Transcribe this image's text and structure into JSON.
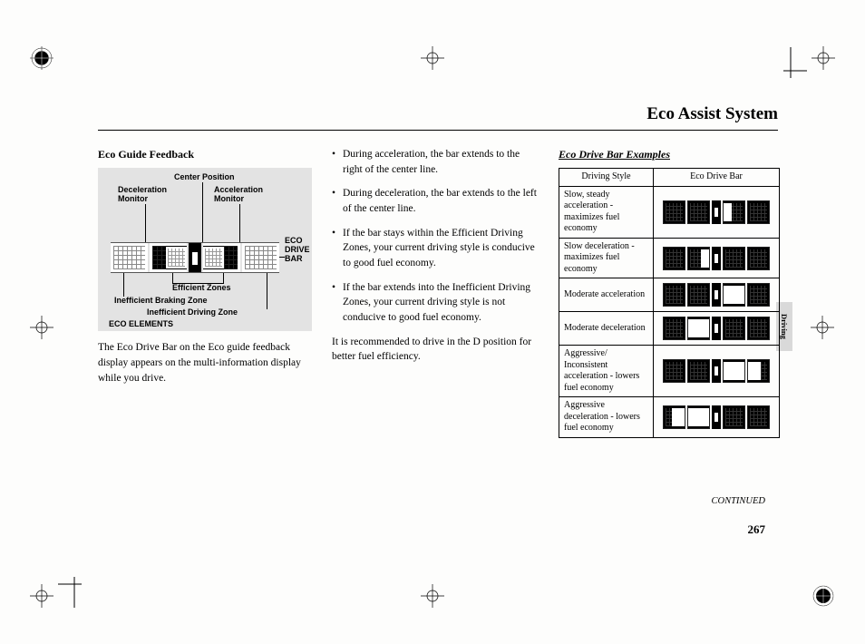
{
  "page": {
    "title": "Eco Assist System",
    "continued": "CONTINUED",
    "number": "267",
    "side_tab": "Driving"
  },
  "col1": {
    "heading": "Eco Guide Feedback",
    "body": "The Eco Drive Bar on the Eco guide feedback display appears on the multi-information display while you drive.",
    "diagram": {
      "center_position": "Center Position",
      "decel_monitor": "Deceleration\nMonitor",
      "accel_monitor": "Acceleration\nMonitor",
      "eco_drive_bar": "ECO\nDRIVE\nBAR",
      "efficient_zones": "Efficient Zones",
      "ineff_braking": "Inefficient Braking Zone",
      "ineff_driving": "Inefficient Driving Zone",
      "eco_elements": "ECO ELEMENTS"
    }
  },
  "col2": {
    "bullets": [
      "During acceleration, the bar extends to the right of the center line.",
      "During deceleration, the bar extends to the left of the center line.",
      "If the bar stays within the Efficient Driving Zones, your current driving style is conducive to good fuel economy.",
      "If the bar extends into the Inefficient Driving Zones, your current driving style is not conducive to good fuel economy."
    ],
    "tail": "It is recommended to drive in the D position for better fuel efficiency."
  },
  "col3": {
    "heading": "Eco Drive Bar Examples",
    "th1": "Driving Style",
    "th2": "Eco Drive Bar",
    "rows": [
      {
        "style": "Slow, steady acceleration - maximizes fuel economy",
        "bar": {
          "segs": [
            "dark",
            "dark",
            "center",
            "fill-right-40",
            "dark"
          ]
        }
      },
      {
        "style": "Slow deceleration - maximizes fuel economy",
        "bar": {
          "segs": [
            "dark",
            "fill-left-40",
            "center",
            "dark",
            "dark"
          ]
        }
      },
      {
        "style": "Moderate acceleration",
        "bar": {
          "segs": [
            "dark",
            "dark",
            "center",
            "fill-right-100",
            "dark"
          ]
        }
      },
      {
        "style": "Moderate deceleration",
        "bar": {
          "segs": [
            "dark",
            "fill-left-100",
            "center",
            "dark",
            "dark"
          ]
        }
      },
      {
        "style": "Aggressive/ Inconsistent acceleration - lowers fuel economy",
        "bar": {
          "segs": [
            "dark",
            "dark",
            "center",
            "fill-right-100",
            "fill-right-60"
          ]
        }
      },
      {
        "style": "Aggressive deceleration - lowers fuel economy",
        "bar": {
          "segs": [
            "fill-left-60",
            "fill-left-100",
            "center",
            "dark",
            "dark"
          ]
        }
      }
    ]
  },
  "style": {
    "bg": "#fdfdfc",
    "text": "#000000",
    "diagram_bg": "#e3e3e3",
    "tab_bg": "#d9d9d9",
    "body_font_size_pt": 11.5,
    "title_font_size_pt": 19
  }
}
